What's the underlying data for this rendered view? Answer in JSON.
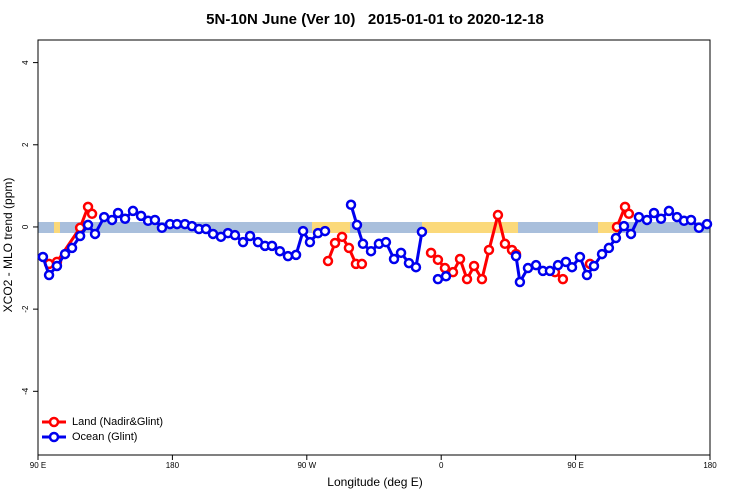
{
  "chart_data": {
    "type": "line",
    "title": "5N-10N June (Ver 10)   2015-01-01 to 2020-12-18",
    "x_label": "Longitude (deg E)",
    "y_label": "XCO2 - MLO trend (ppm)",
    "xlim": [
      90,
      540
    ],
    "ylim": [
      -5.55,
      4.55
    ],
    "xticks": [
      {
        "value": 90,
        "label": "90 E"
      },
      180,
      {
        "value": 270,
        "label": "90 W"
      },
      {
        "value": 360,
        "label": "0"
      },
      {
        "value": 450,
        "label": "90 E"
      },
      {
        "value": 540,
        "label": "180"
      }
    ],
    "yticks": [
      -4,
      -2,
      0,
      2,
      4
    ],
    "legend": "bottom-left",
    "series": [
      {
        "name": "Land (Nadir&Glint)",
        "color": "#ff0000",
        "x": [
          97.4,
          102.7,
          118.2,
          123.5,
          126.2,
          null,
          284.2,
          288.9,
          293.6,
          298.2,
          302.9,
          306.9,
          null,
          353.2,
          357.8,
          362.5,
          367.9,
          372.6,
          377.3,
          382.0,
          387.3,
          392.0,
          398.0,
          402.7,
          407.4,
          410.1,
          null,
          436.2,
          441.5,
          null,
          459.6,
          null,
          477.7,
          483.1,
          485.7
        ],
        "values": [
          -0.9,
          -0.85,
          -0.02,
          0.49,
          0.32,
          null,
          -0.83,
          -0.39,
          -0.24,
          -0.51,
          -0.9,
          -0.9,
          null,
          -0.63,
          -0.8,
          -1.0,
          -1.1,
          -0.78,
          -1.27,
          -0.95,
          -1.27,
          -0.56,
          0.29,
          -0.41,
          -0.56,
          -0.66,
          null,
          -1.1,
          -1.27,
          null,
          -0.9,
          null,
          0.0,
          0.49,
          0.32
        ]
      },
      {
        "name": "Ocean (Glint)",
        "color": "#0000ee",
        "x": [
          93.3,
          97.4,
          102.7,
          108.1,
          112.8,
          118.2,
          123.5,
          128.2,
          134.3,
          139.6,
          143.6,
          148.3,
          153.6,
          159.0,
          163.7,
          168.3,
          173.0,
          178.4,
          183.1,
          188.4,
          193.1,
          197.8,
          202.5,
          207.2,
          212.5,
          217.2,
          221.9,
          227.3,
          232.0,
          237.3,
          242.0,
          246.7,
          252.0,
          257.4,
          262.8,
          267.5,
          272.1,
          277.5,
          282.2,
          null,
          299.6,
          303.6,
          307.6,
          313.0,
          318.3,
          323.0,
          328.4,
          333.1,
          338.4,
          343.1,
          347.1,
          null,
          357.8,
          363.2,
          null,
          410.1,
          412.7,
          418.1,
          423.5,
          428.1,
          432.8,
          438.2,
          443.5,
          447.6,
          452.9,
          457.6,
          462.3,
          467.7,
          472.3,
          477.0,
          482.4,
          487.1,
          492.4,
          497.8,
          502.5,
          507.2,
          512.5,
          517.9,
          522.6,
          527.3,
          532.6,
          538.0
        ],
        "values": [
          -0.73,
          -1.17,
          -0.95,
          -0.66,
          -0.51,
          -0.22,
          0.05,
          -0.17,
          0.24,
          0.17,
          0.34,
          0.2,
          0.39,
          0.27,
          0.15,
          0.17,
          -0.02,
          0.07,
          0.07,
          0.07,
          0.02,
          -0.05,
          -0.05,
          -0.17,
          -0.24,
          -0.15,
          -0.2,
          -0.37,
          -0.22,
          -0.37,
          -0.46,
          -0.46,
          -0.59,
          -0.71,
          -0.68,
          -0.1,
          -0.37,
          -0.15,
          -0.1,
          null,
          0.54,
          0.05,
          -0.41,
          -0.59,
          -0.41,
          -0.37,
          -0.78,
          -0.63,
          -0.88,
          -0.98,
          -0.12,
          null,
          -1.27,
          -1.2,
          null,
          -0.71,
          -1.34,
          -1.0,
          -0.93,
          -1.07,
          -1.07,
          -0.93,
          -0.85,
          -0.98,
          -0.73,
          -1.17,
          -0.95,
          -0.66,
          -0.51,
          -0.27,
          0.02,
          -0.17,
          0.24,
          0.17,
          0.34,
          0.2,
          0.39,
          0.24,
          0.15,
          0.17,
          -0.02,
          0.07
        ]
      }
    ]
  }
}
